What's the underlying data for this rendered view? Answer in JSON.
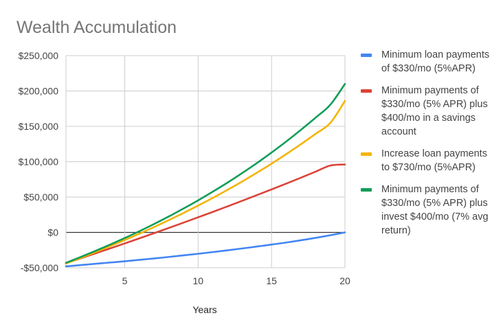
{
  "chart_data": {
    "type": "line",
    "title": "Wealth Accumulation",
    "xlabel": "Years",
    "ylabel": "",
    "xlim": [
      1,
      20
    ],
    "ylim": [
      -50000,
      250000
    ],
    "x_ticks": [
      5,
      10,
      15,
      20
    ],
    "y_ticks": [
      {
        "value": -50000,
        "label": "-$50,000"
      },
      {
        "value": 0,
        "label": "$0"
      },
      {
        "value": 50000,
        "label": "$50,000"
      },
      {
        "value": 100000,
        "label": "$100,000"
      },
      {
        "value": 150000,
        "label": "$150,000"
      },
      {
        "value": 200000,
        "label": "$200,000"
      },
      {
        "value": 250000,
        "label": "$250,000"
      }
    ],
    "grid": true,
    "legend_position": "right",
    "x": [
      1,
      2,
      3,
      4,
      5,
      6,
      7,
      8,
      9,
      10,
      11,
      12,
      13,
      14,
      15,
      16,
      17,
      18,
      19,
      20
    ],
    "series": [
      {
        "name": "Minimum loan payments of $330/mo (5%APR)",
        "color": "#4285F4",
        "values": [
          -48000,
          -46200,
          -44400,
          -42600,
          -40800,
          -38800,
          -36800,
          -34700,
          -32500,
          -30200,
          -27800,
          -25300,
          -22700,
          -20000,
          -17200,
          -14300,
          -11100,
          -7700,
          -4000,
          0
        ]
      },
      {
        "name": "Minimum payments of $330/mo (5% APR) plus $400/mo in a savings account",
        "color": "#DB4437",
        "values": [
          -43500,
          -36700,
          -29700,
          -22700,
          -15600,
          -8400,
          -1100,
          6300,
          13800,
          21400,
          29000,
          36800,
          44700,
          52700,
          60800,
          69000,
          77400,
          85900,
          94500,
          96000
        ]
      },
      {
        "name": "Increase loan payments to $730/mo (5%APR)",
        "color": "#F4B400",
        "values": [
          -44000,
          -36200,
          -28000,
          -19500,
          -10800,
          -1800,
          7600,
          17300,
          27400,
          37900,
          48800,
          60200,
          72000,
          84400,
          97200,
          110700,
          124700,
          139400,
          154700,
          186000
        ]
      },
      {
        "name": "Minimum payments of $330/mo (5% APR) plus invest $400/mo (7% avg return)",
        "color": "#0F9D58",
        "values": [
          -43000,
          -34800,
          -26200,
          -17300,
          -8000,
          1700,
          11900,
          22500,
          33700,
          45300,
          57600,
          70400,
          83900,
          98000,
          112900,
          128500,
          145000,
          162300,
          180500,
          210000
        ]
      }
    ]
  }
}
